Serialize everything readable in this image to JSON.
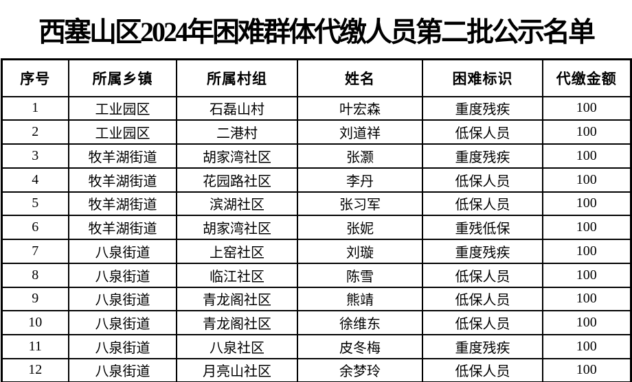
{
  "title": "西塞山区2024年困难群体代缴人员第二批公示名单",
  "table": {
    "headers": [
      "序号",
      "所属乡镇",
      "所属村组",
      "姓名",
      "困难标识",
      "代缴金额"
    ],
    "rows": [
      [
        "1",
        "工业园区",
        "石磊山村",
        "叶宏森",
        "重度残疾",
        "100"
      ],
      [
        "2",
        "工业园区",
        "二港村",
        "刘道祥",
        "低保人员",
        "100"
      ],
      [
        "3",
        "牧羊湖街道",
        "胡家湾社区",
        "张灏",
        "重度残疾",
        "100"
      ],
      [
        "4",
        "牧羊湖街道",
        "花园路社区",
        "李丹",
        "低保人员",
        "100"
      ],
      [
        "5",
        "牧羊湖街道",
        "滨湖社区",
        "张习军",
        "低保人员",
        "100"
      ],
      [
        "6",
        "牧羊湖街道",
        "胡家湾社区",
        "张妮",
        "重残低保",
        "100"
      ],
      [
        "7",
        "八泉街道",
        "上窑社区",
        "刘璇",
        "重度残疾",
        "100"
      ],
      [
        "8",
        "八泉街道",
        "临江社区",
        "陈雪",
        "低保人员",
        "100"
      ],
      [
        "9",
        "八泉街道",
        "青龙阁社区",
        "熊靖",
        "低保人员",
        "100"
      ],
      [
        "10",
        "八泉街道",
        "青龙阁社区",
        "徐维东",
        "低保人员",
        "100"
      ],
      [
        "11",
        "八泉街道",
        "八泉社区",
        "皮冬梅",
        "重度残疾",
        "100"
      ],
      [
        "12",
        "八泉街道",
        "月亮山社区",
        "余梦玲",
        "低保人员",
        "100"
      ]
    ]
  },
  "colors": {
    "text": "#000000",
    "border": "#000000",
    "background": "#ffffff"
  }
}
